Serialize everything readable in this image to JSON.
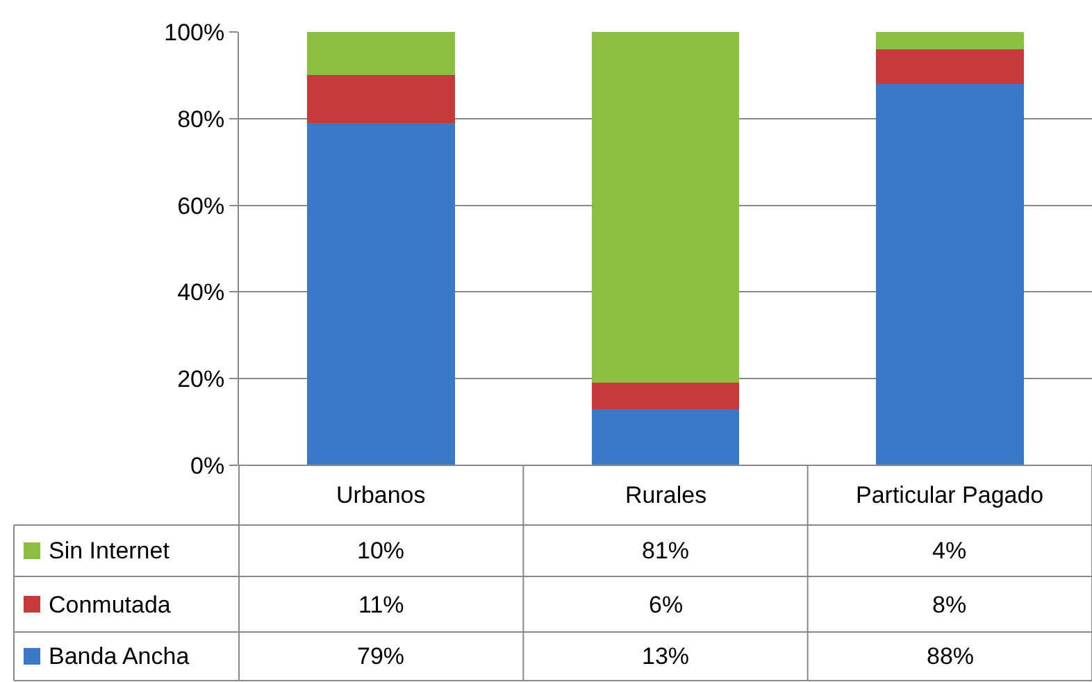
{
  "chart_data": {
    "type": "bar",
    "stacked": true,
    "categories": [
      "Urbanos",
      "Rurales",
      "Particular Pagado"
    ],
    "series": [
      {
        "name": "Banda Ancha",
        "color": "#3a78c8",
        "values": [
          79,
          13,
          88
        ],
        "value_labels": [
          "79%",
          "13%",
          "88%"
        ]
      },
      {
        "name": "Conmutada",
        "color": "#c83a3a",
        "values": [
          11,
          6,
          8
        ],
        "value_labels": [
          "11%",
          "6%",
          "8%"
        ]
      },
      {
        "name": "Sin Internet",
        "color": "#8cbf3f",
        "values": [
          10,
          81,
          4
        ],
        "value_labels": [
          "10%",
          "81%",
          "4%"
        ]
      }
    ],
    "ylim": [
      0,
      100
    ],
    "yticks": [
      {
        "value": 0,
        "label": "0%"
      },
      {
        "value": 20,
        "label": "20%"
      },
      {
        "value": 40,
        "label": "40%"
      },
      {
        "value": 60,
        "label": "60%"
      },
      {
        "value": 80,
        "label": "80%"
      },
      {
        "value": 100,
        "label": "100%"
      }
    ],
    "grid": "y",
    "legend": "bottom"
  }
}
